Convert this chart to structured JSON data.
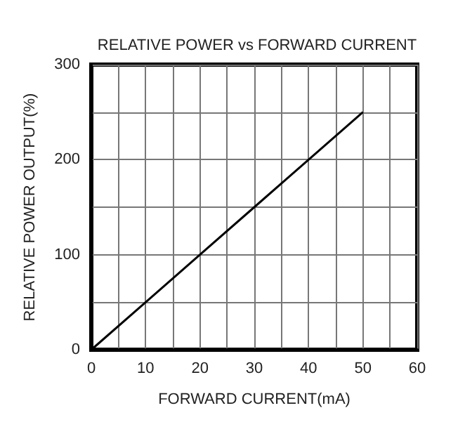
{
  "chart_data": {
    "type": "line",
    "title": "RELATIVE POWER vs FORWARD CURRENT",
    "xlabel": "FORWARD CURRENT(mA)",
    "ylabel": "RELATIVE POWER OUTPUT(%)",
    "x": [
      0,
      10,
      20,
      30,
      40,
      50
    ],
    "series": [
      {
        "color": "#000000",
        "values": [
          0,
          50,
          100,
          150,
          200,
          250
        ]
      }
    ],
    "xlim": [
      0,
      60
    ],
    "xticks": [
      0,
      {
        "value": 5,
        "label": null
      },
      10,
      {
        "value": 15,
        "label": null
      },
      20,
      {
        "value": 25,
        "label": null
      },
      30,
      {
        "value": 35,
        "label": null
      },
      40,
      {
        "value": 45,
        "label": null
      },
      50,
      {
        "value": 55,
        "label": null
      },
      60
    ],
    "ylim": [
      0,
      300
    ],
    "yticks": [
      0,
      {
        "value": 50,
        "label": null
      },
      100,
      {
        "value": 150,
        "label": null
      },
      200,
      {
        "value": 250,
        "label": null
      },
      300
    ],
    "grid": true,
    "marker": "none",
    "line_style": "solid"
  }
}
